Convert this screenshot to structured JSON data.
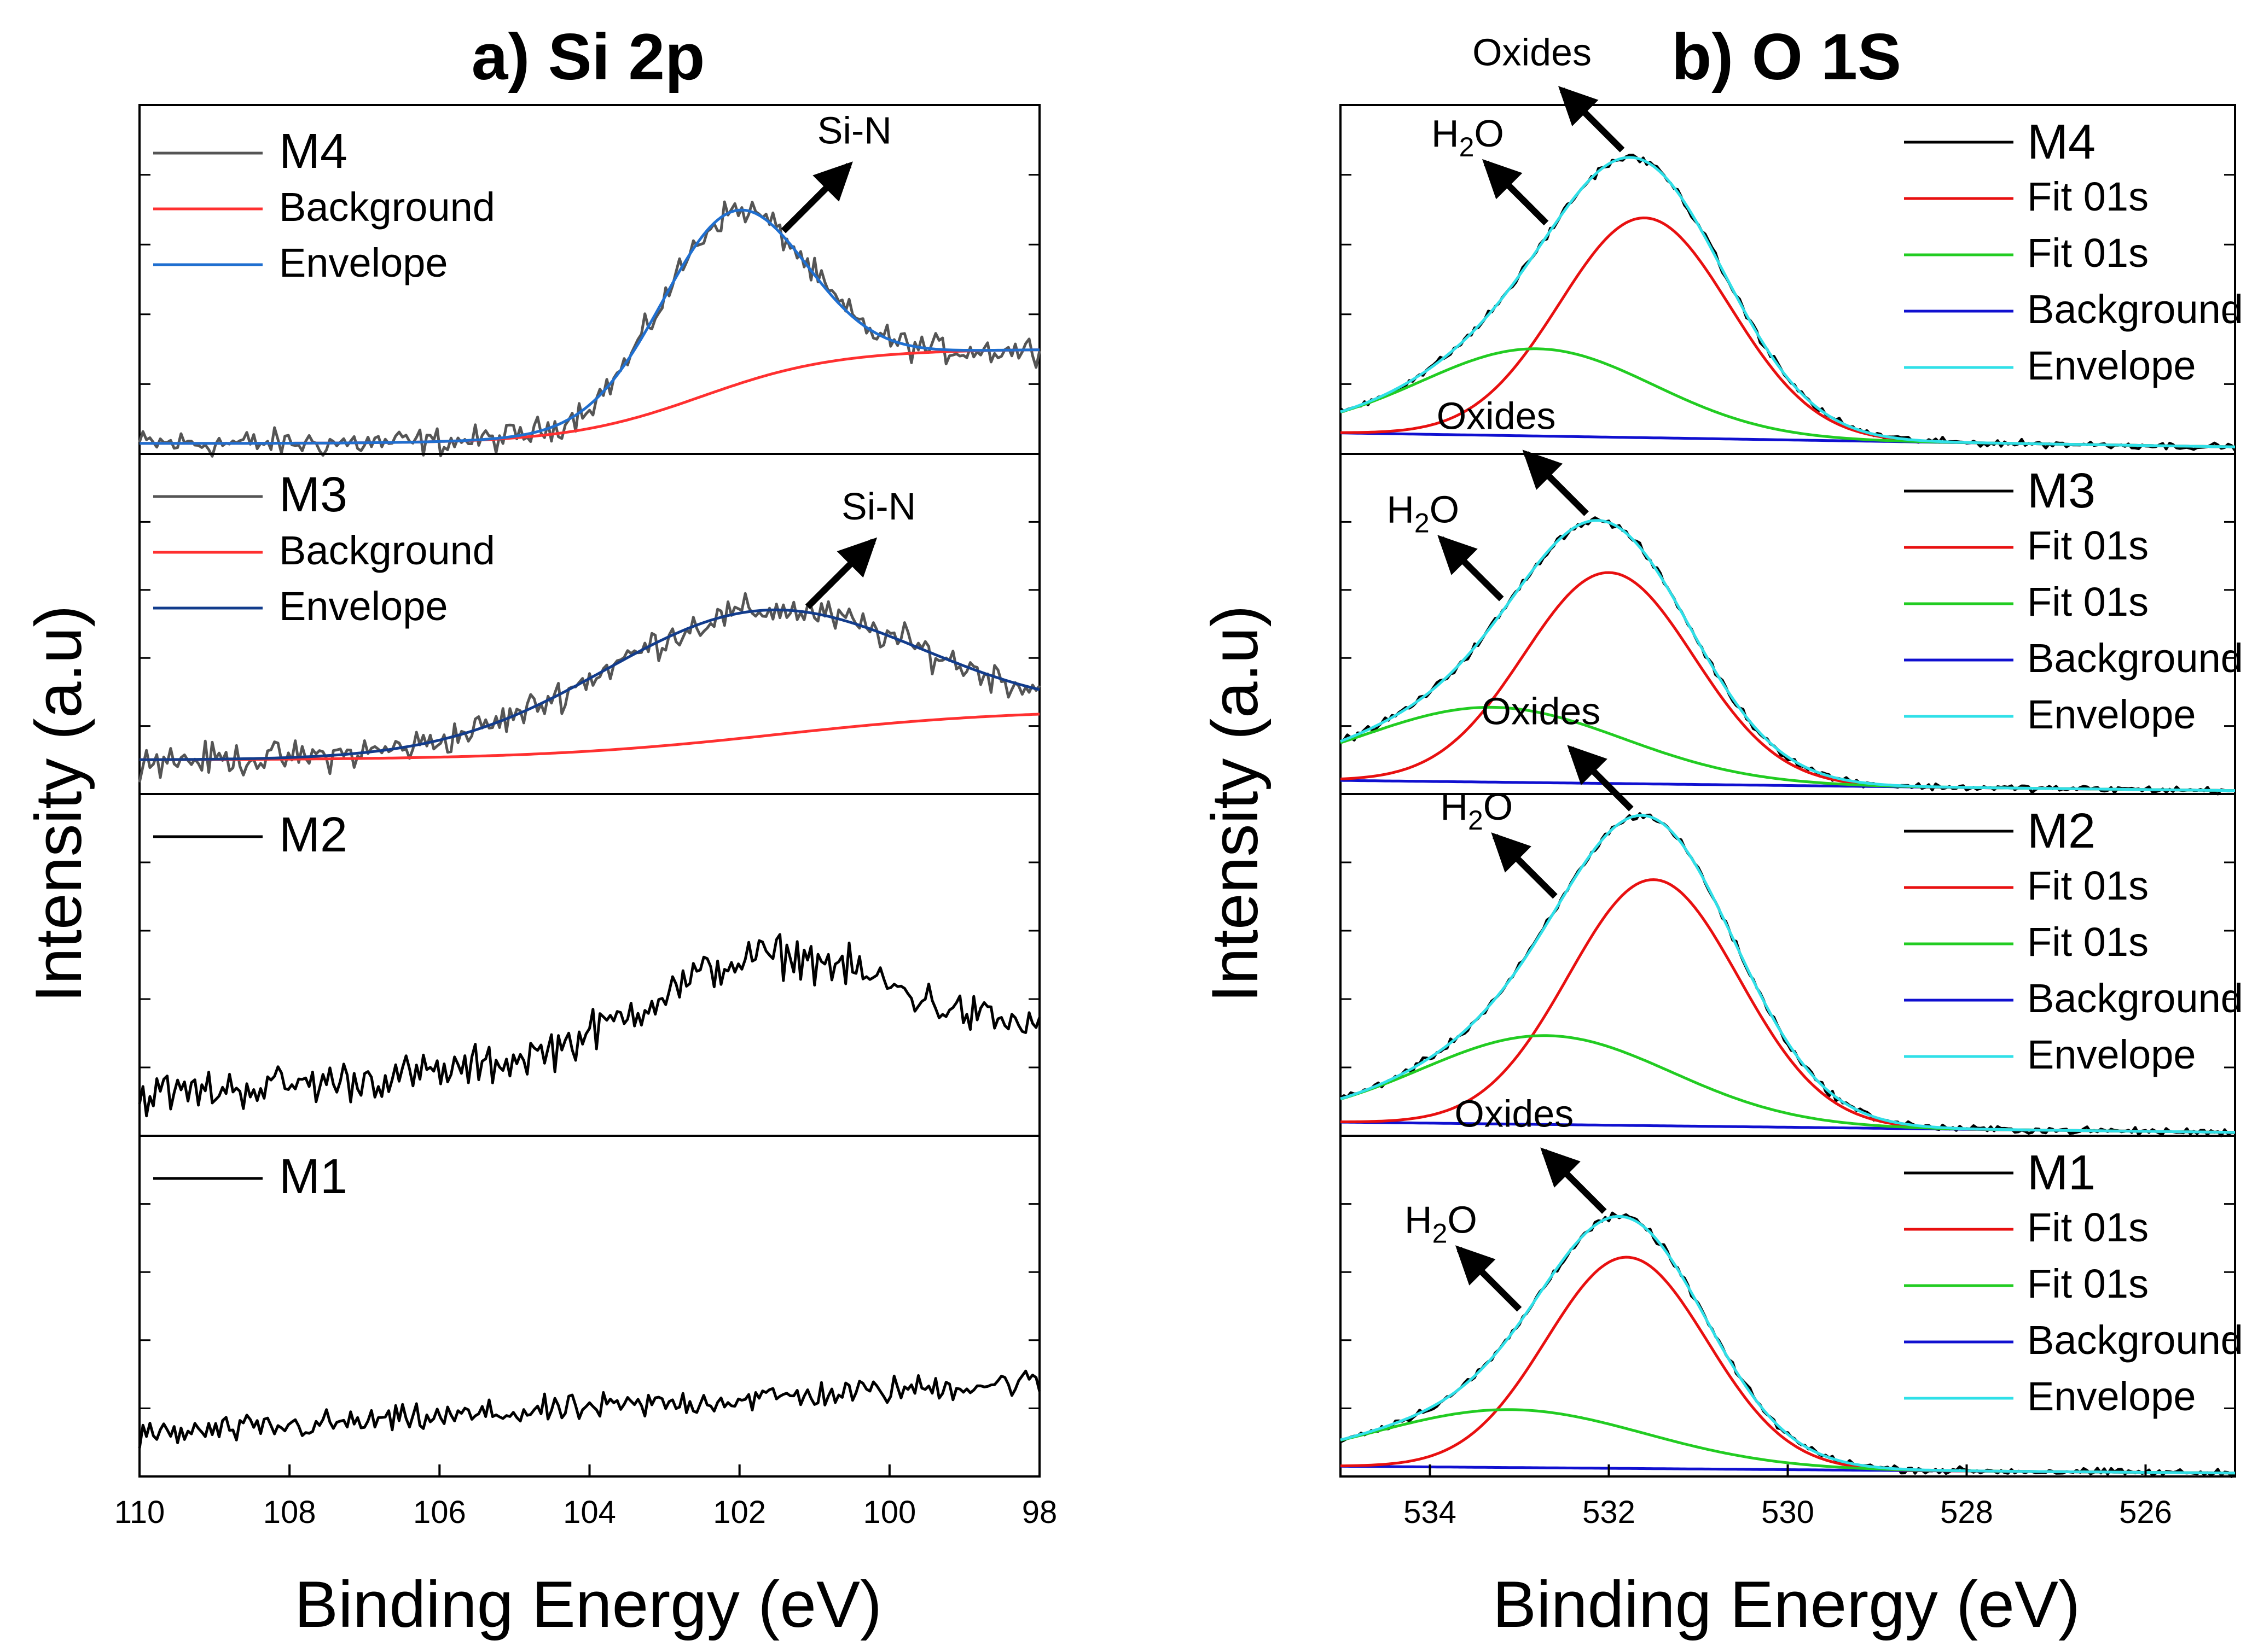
{
  "chart_data": [
    {
      "type": "line",
      "title": "a) Si 2p",
      "xlabel": "Binding Energy (eV)",
      "ylabel": "Intensity (a.u)",
      "xlim": [
        110,
        98
      ],
      "x_ticks": [
        "110",
        "108",
        "106",
        "104",
        "102",
        "100",
        "98"
      ],
      "panels": [
        {
          "sample": "M4",
          "legend": [
            "M4",
            "Background",
            "Envelope"
          ],
          "annotation": "Si-N",
          "noise": 0.06,
          "series": [
            {
              "name": "M4",
              "color": "#555555",
              "kind": "data"
            },
            {
              "name": "Background",
              "color": "#ff3030",
              "kind": "background",
              "low": 0.03,
              "high": 0.3,
              "center": 102.5,
              "width": 0.9
            },
            {
              "name": "Envelope",
              "color": "#1f6fd0",
              "kind": "envelope",
              "peaks": [
                {
                  "center": 102.1,
                  "height": 0.5,
                  "sigma": 0.95
                }
              ]
            }
          ]
        },
        {
          "sample": "M3",
          "legend": [
            "M3",
            "Background",
            "Envelope"
          ],
          "annotation": "Si-N",
          "noise": 0.07,
          "series": [
            {
              "name": "M3",
              "color": "#555555",
              "kind": "data"
            },
            {
              "name": "Background",
              "color": "#ff3030",
              "kind": "background",
              "low": 0.1,
              "high": 0.25,
              "center": 101.5,
              "width": 1.6
            },
            {
              "name": "Envelope",
              "color": "#123c8c",
              "kind": "envelope",
              "peaks": [
                {
                  "center": 101.8,
                  "height": 0.37,
                  "sigma": 2.1
                }
              ]
            }
          ]
        },
        {
          "sample": "M2",
          "legend": [
            "M2"
          ],
          "noise": 0.09,
          "series": [
            {
              "name": "M2",
              "color": "#000000",
              "kind": "raw",
              "baseline": 0.12,
              "slope_to": 0.3,
              "peaks": [
                {
                  "center": 101.6,
                  "height": 0.28,
                  "sigma": 1.6
                }
              ]
            }
          ]
        },
        {
          "sample": "M1",
          "legend": [
            "M1"
          ],
          "noise": 0.06,
          "series": [
            {
              "name": "M1",
              "color": "#000000",
              "kind": "raw",
              "baseline": 0.12,
              "slope_to": 0.28,
              "peaks": []
            }
          ]
        }
      ]
    },
    {
      "type": "line",
      "title": "b) O 1S",
      "xlabel": "Binding Energy (eV)",
      "ylabel": "Intensity (a.u)",
      "xlim": [
        535,
        525
      ],
      "x_ticks": [
        "534",
        "532",
        "530",
        "528",
        "526"
      ],
      "panels": [
        {
          "sample": "M4",
          "legend": [
            "M4",
            "Fit 01s",
            "Fit 01s",
            "Background",
            "Envelope"
          ],
          "annotations": [
            "Oxides",
            "H2O"
          ],
          "noise": 0.015,
          "series": [
            {
              "name": "M4",
              "color": "#000000",
              "kind": "data"
            },
            {
              "name": "Fit 01s",
              "color": "#e81010",
              "kind": "peak",
              "center": 531.6,
              "height": 0.63,
              "sigma": 0.95
            },
            {
              "name": "Fit 01s",
              "color": "#22cc22",
              "kind": "peak",
              "center": 532.8,
              "height": 0.25,
              "sigma": 1.3
            },
            {
              "name": "Background",
              "color": "#1010d0",
              "kind": "line",
              "from": 0.06,
              "to": 0.02
            },
            {
              "name": "Envelope",
              "color": "#30e0e8",
              "kind": "envelope"
            }
          ]
        },
        {
          "sample": "M3",
          "legend": [
            "M3",
            "Fit 01s",
            "Fit 01s",
            "Background",
            "Envelope"
          ],
          "annotations": [
            "Oxides",
            "H2O"
          ],
          "noise": 0.015,
          "series": [
            {
              "name": "M3",
              "color": "#000000",
              "kind": "data"
            },
            {
              "name": "Fit 01s",
              "color": "#e81010",
              "kind": "peak",
              "center": 532.0,
              "height": 0.62,
              "sigma": 0.95
            },
            {
              "name": "Fit 01s",
              "color": "#22cc22",
              "kind": "peak",
              "center": 533.3,
              "height": 0.22,
              "sigma": 1.45
            },
            {
              "name": "Background",
              "color": "#1010d0",
              "kind": "line",
              "from": 0.04,
              "to": 0.01
            },
            {
              "name": "Envelope",
              "color": "#30e0e8",
              "kind": "envelope"
            }
          ]
        },
        {
          "sample": "M2",
          "legend": [
            "M2",
            "Fit 01s",
            "Fit 01s",
            "Background",
            "Envelope"
          ],
          "annotations": [
            "Oxides",
            "H2O"
          ],
          "noise": 0.015,
          "series": [
            {
              "name": "M2",
              "color": "#000000",
              "kind": "data"
            },
            {
              "name": "Fit 01s",
              "color": "#e81010",
              "kind": "peak",
              "center": 531.5,
              "height": 0.72,
              "sigma": 0.95
            },
            {
              "name": "Fit 01s",
              "color": "#22cc22",
              "kind": "peak",
              "center": 532.7,
              "height": 0.26,
              "sigma": 1.4
            },
            {
              "name": "Background",
              "color": "#1010d0",
              "kind": "line",
              "from": 0.04,
              "to": 0.01
            },
            {
              "name": "Envelope",
              "color": "#30e0e8",
              "kind": "envelope"
            }
          ]
        },
        {
          "sample": "M1",
          "legend": [
            "M1",
            "Fit 01s",
            "Fit 01s",
            "Background",
            "Envelope"
          ],
          "annotations": [
            "Oxides",
            "H2O"
          ],
          "noise": 0.015,
          "series": [
            {
              "name": "M1",
              "color": "#000000",
              "kind": "data"
            },
            {
              "name": "Fit 01s",
              "color": "#e81010",
              "kind": "peak",
              "center": 531.8,
              "height": 0.62,
              "sigma": 0.9
            },
            {
              "name": "Fit 01s",
              "color": "#22cc22",
              "kind": "peak",
              "center": 533.1,
              "height": 0.17,
              "sigma": 1.5
            },
            {
              "name": "Background",
              "color": "#1010d0",
              "kind": "line",
              "from": 0.03,
              "to": 0.01
            },
            {
              "name": "Envelope",
              "color": "#30e0e8",
              "kind": "envelope"
            }
          ]
        }
      ]
    }
  ]
}
